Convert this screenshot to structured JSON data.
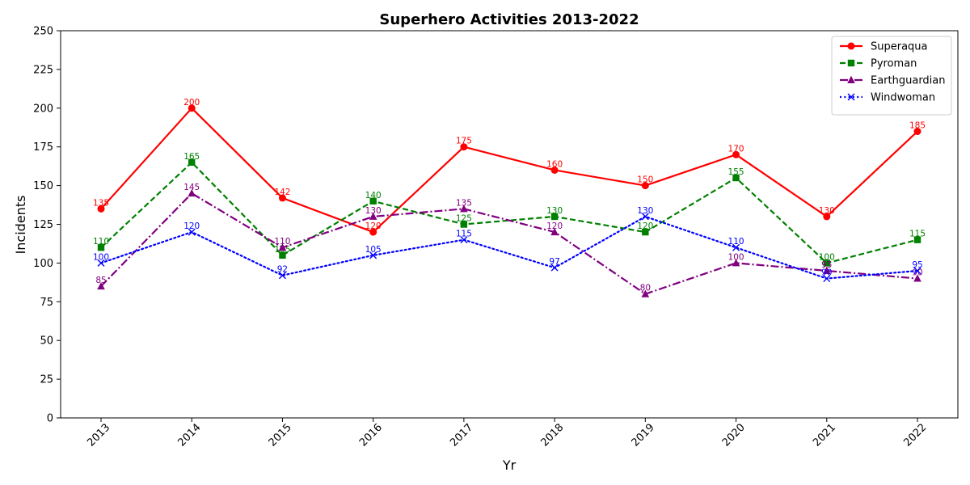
{
  "chart_data": {
    "type": "line",
    "title": "Superhero Activities 2013-2022",
    "xlabel": "Yr",
    "ylabel": "Incidents",
    "categories": [
      "2013",
      "2014",
      "2015",
      "2016",
      "2017",
      "2018",
      "2019",
      "2020",
      "2021",
      "2022"
    ],
    "ylim": [
      0,
      250
    ],
    "yticks": [
      0,
      25,
      50,
      75,
      100,
      125,
      150,
      175,
      200,
      225,
      250
    ],
    "grid": false,
    "legend_position": "top-right",
    "x_tick_rotation_deg": 45,
    "series": [
      {
        "name": "Superaqua",
        "values": [
          135,
          200,
          142,
          120,
          175,
          160,
          150,
          170,
          130,
          185
        ],
        "color": "#ff0000",
        "line_style": "solid",
        "marker": "circle"
      },
      {
        "name": "Pyroman",
        "values": [
          110,
          165,
          105,
          140,
          125,
          130,
          120,
          155,
          100,
          115
        ],
        "color": "#008000",
        "line_style": "dashed",
        "marker": "square"
      },
      {
        "name": "Earthguardian",
        "values": [
          85,
          145,
          110,
          130,
          135,
          120,
          80,
          100,
          95,
          90
        ],
        "color": "#800080",
        "line_style": "dashdot",
        "marker": "triangle-up"
      },
      {
        "name": "Windwoman",
        "values": [
          100,
          120,
          92,
          105,
          115,
          97,
          130,
          110,
          90,
          95
        ],
        "color": "#0000ff",
        "line_style": "dotted",
        "marker": "x"
      }
    ]
  }
}
